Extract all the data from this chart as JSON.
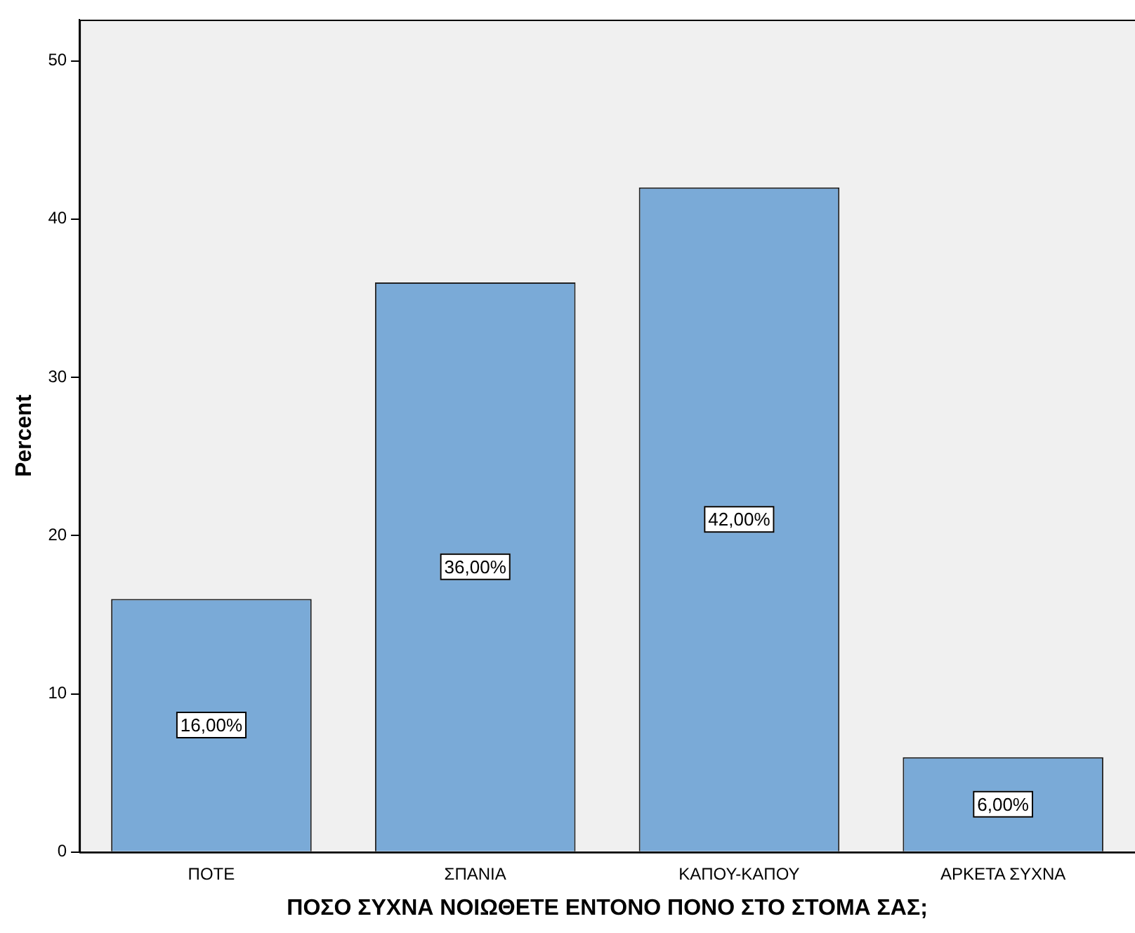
{
  "chart_data": {
    "type": "bar",
    "xlabel": "ΠΟΣΟ ΣΥΧΝΑ ΝΟΙΩΘΕΤΕ ΕΝΤΟΝΟ ΠΟΝΟ ΣΤΟ ΣΤΟΜΑ ΣΑΣ;",
    "ylabel": "Percent",
    "categories": [
      "ΠΟΤΕ",
      "ΣΠΑΝΙΑ",
      "ΚΑΠΟΥ-ΚΑΠΟΥ",
      "ΑΡΚΕΤΑ ΣΥΧΝΑ"
    ],
    "values": [
      16,
      36,
      42,
      6
    ],
    "value_labels": [
      "16,00%",
      "36,00%",
      "42,00%",
      "6,00%"
    ],
    "color": "#7aaad7",
    "ylim": [
      0,
      52.6
    ],
    "yticks": [
      0,
      10,
      20,
      30,
      40,
      50
    ],
    "grid": false,
    "legend": false
  }
}
